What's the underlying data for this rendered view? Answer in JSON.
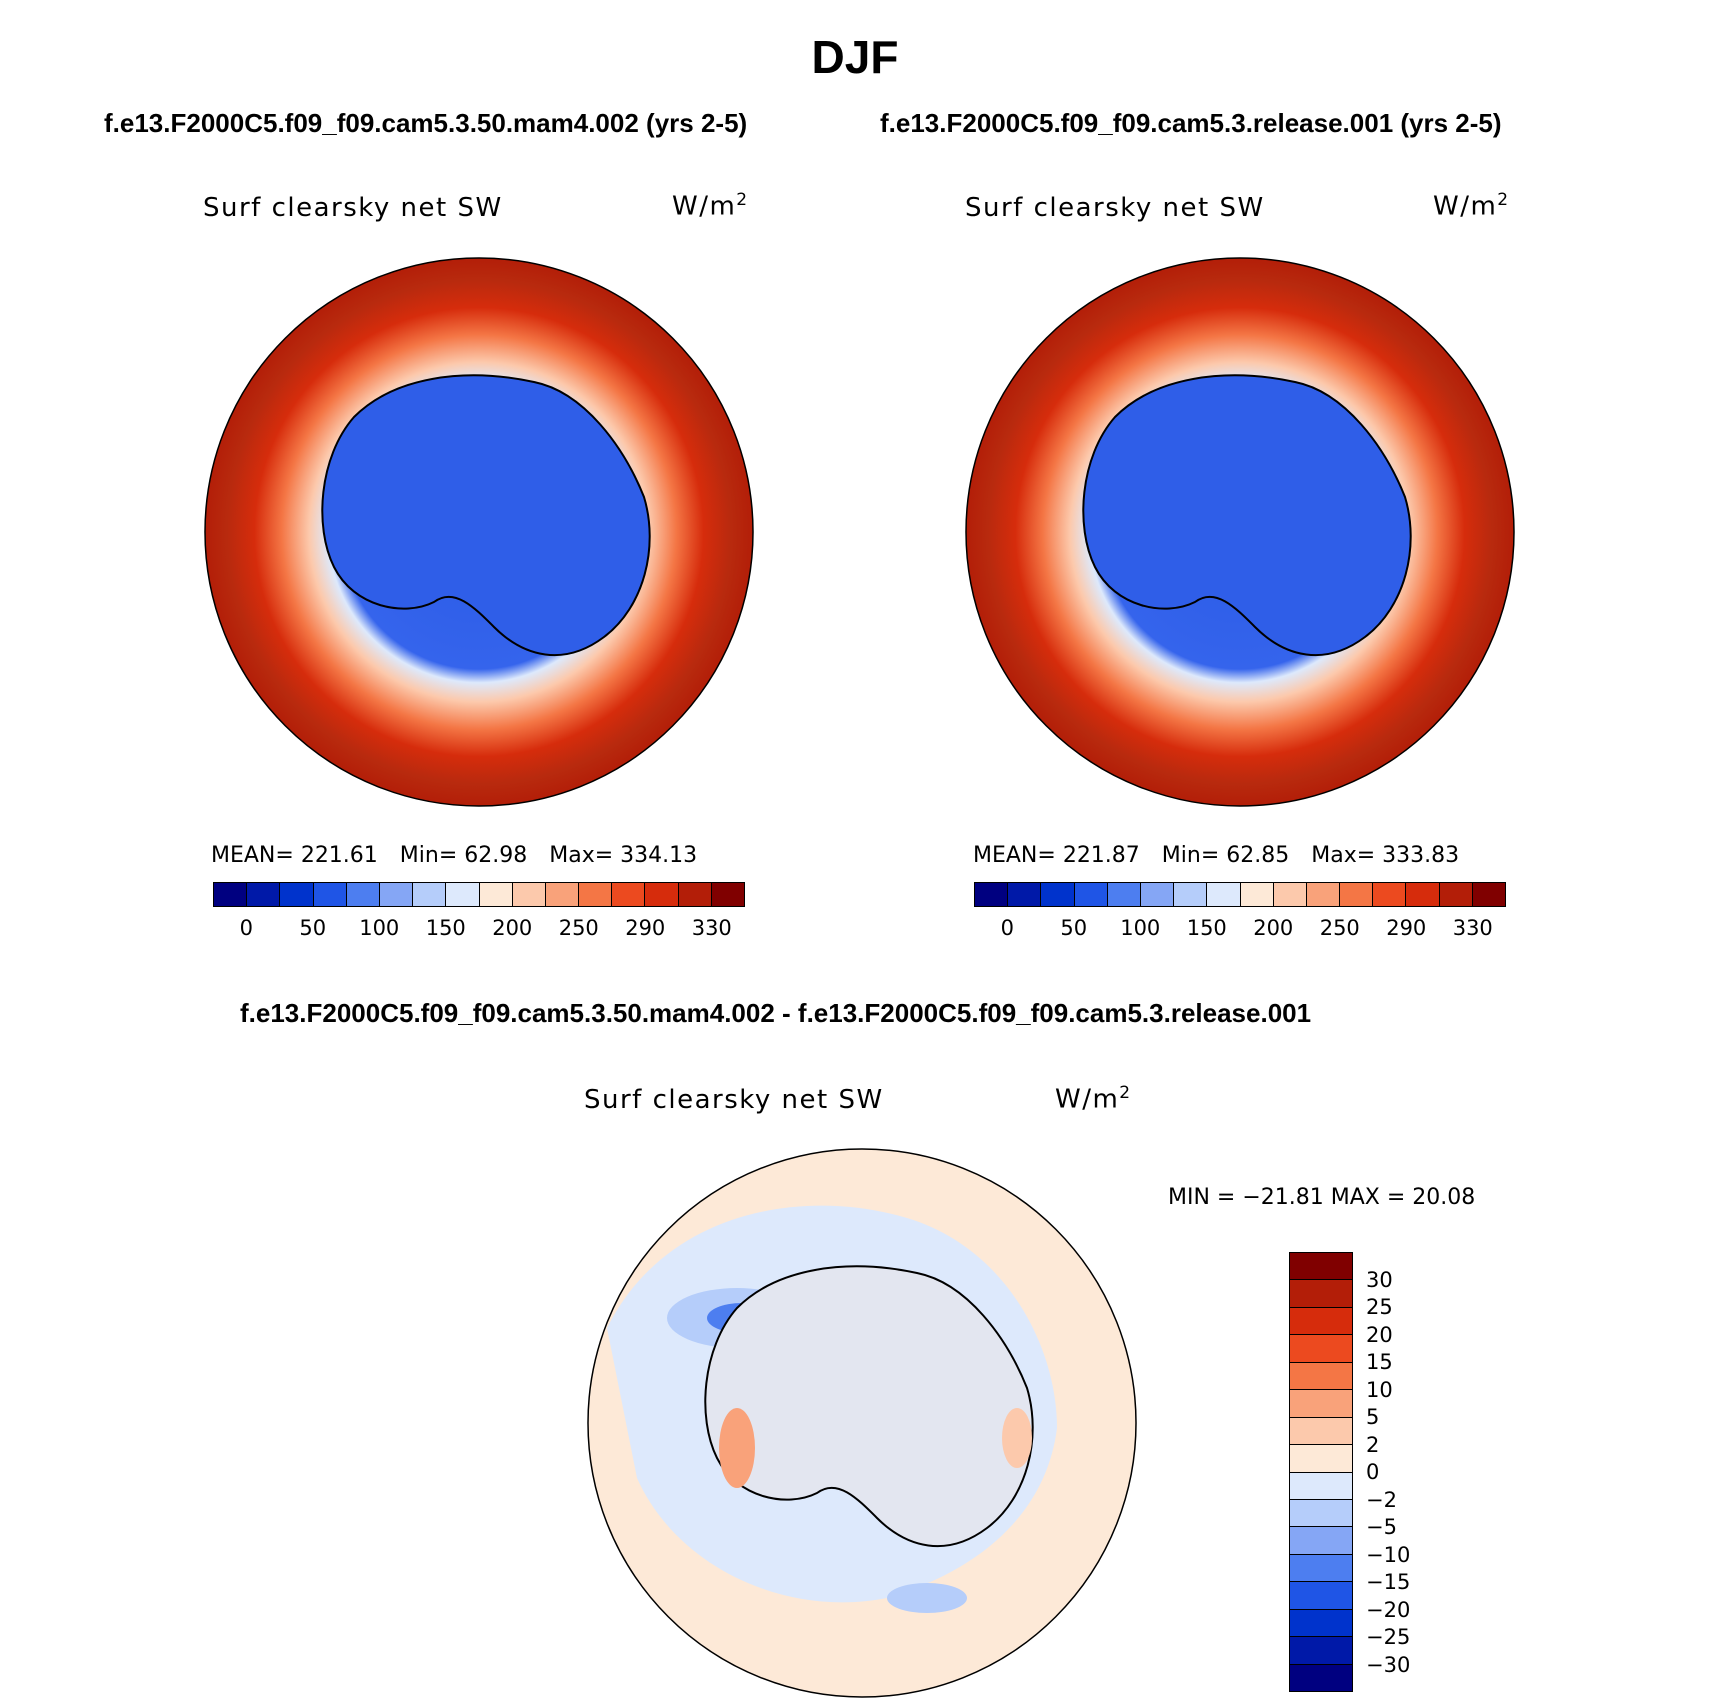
{
  "season": "DJF",
  "case_a_title": "f.e13.F2000C5.f09_f09.cam5.3.50.mam4.002 (yrs 2-5)",
  "case_b_title": "f.e13.F2000C5.f09_f09.cam5.3.release.001 (yrs 2-5)",
  "diff_title": "f.e13.F2000C5.f09_f09.cam5.3.50.mam4.002 - f.e13.F2000C5.f09_f09.cam5.3.release.001",
  "variable": "Surf clearsky net SW",
  "units": "W/m",
  "units_exp": "2",
  "panel_a": {
    "mean": "MEAN= 221.61",
    "min": "Min=   62.98",
    "max": "Max= 334.13"
  },
  "panel_b": {
    "mean": "MEAN= 221.87",
    "min": "Min=   62.85",
    "max": "Max= 333.83"
  },
  "diff_panel": {
    "minmax": "MIN = −21.81 MAX =  20.08"
  },
  "field_colorbar": {
    "colors": [
      "#000080",
      "#0019a8",
      "#0033cc",
      "#1f55e6",
      "#4d7ef0",
      "#85a6f5",
      "#b5cdfa",
      "#dde9fc",
      "#fde9d7",
      "#fcc9ac",
      "#f9a27a",
      "#f47645",
      "#ec4a1f",
      "#d62c0c",
      "#b31e08",
      "#800000"
    ],
    "ticks": [
      "0",
      "50",
      "100",
      "150",
      "200",
      "250",
      "290",
      "330"
    ]
  },
  "diff_colorbar": {
    "colors": [
      "#800000",
      "#b31e08",
      "#d62c0c",
      "#ec4a1f",
      "#f47645",
      "#f9a27a",
      "#fcc9ac",
      "#fde9d7",
      "#dde9fc",
      "#b5cdfa",
      "#85a6f5",
      "#4d7ef0",
      "#1f55e6",
      "#0033cc",
      "#0019a8",
      "#000080"
    ],
    "ticks": [
      "30",
      "25",
      "20",
      "15",
      "10",
      "5",
      "2",
      "0",
      "−2",
      "−5",
      "−10",
      "−15",
      "−20",
      "−25",
      "−30"
    ]
  }
}
